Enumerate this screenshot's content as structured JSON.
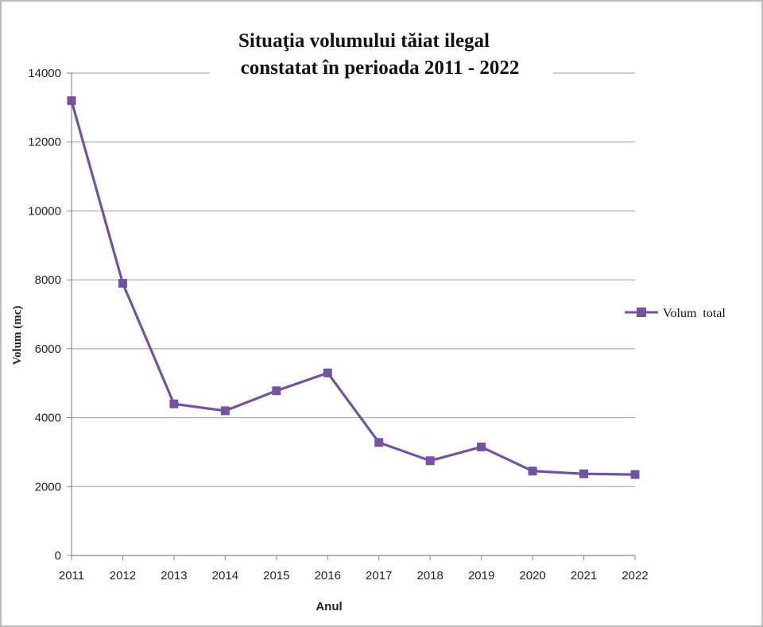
{
  "chart_data": {
    "type": "line",
    "title": "Situaţia volumului tăiat ilegal constatat în perioada 2011 - 2022",
    "title_lines": [
      "Situaţia volumului tăiat ilegal",
      "constatat în perioada 2011 - 2022"
    ],
    "xlabel": "Anul",
    "ylabel": "Volum (mc)",
    "x": [
      "2011",
      "2012",
      "2013",
      "2014",
      "2015",
      "2016",
      "2017",
      "2018",
      "2019",
      "2020",
      "2021",
      "2022"
    ],
    "series": [
      {
        "name": "Volum  total",
        "color": "#7352a6",
        "marker": "square",
        "values": [
          13200,
          7900,
          4400,
          4200,
          4780,
          5300,
          3280,
          2750,
          3150,
          2450,
          2370,
          2350
        ]
      }
    ],
    "ylim": [
      0,
      14000
    ],
    "yticks": [
      "0",
      "2000",
      "4000",
      "6000",
      "8000",
      "10000",
      "12000",
      "14000"
    ],
    "grid": true,
    "legend_position": "right"
  }
}
